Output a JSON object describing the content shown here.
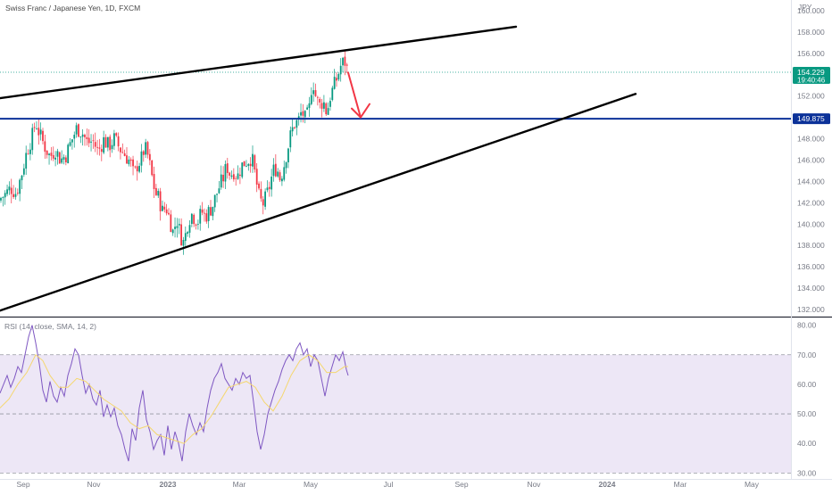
{
  "chart_data": {
    "type": "candlestick",
    "title": "Swiss Franc / Japanese Yen, 1D, FXCM",
    "currency_label": "JPY",
    "price_axis": {
      "ylim": [
        131.5,
        161.0
      ],
      "ticks": [
        "160.000",
        "158.000",
        "156.000",
        "154.000",
        "152.000",
        "150.000",
        "148.000",
        "146.000",
        "144.000",
        "142.000",
        "140.000",
        "138.000",
        "136.000",
        "134.000",
        "132.000"
      ]
    },
    "x_axis": {
      "labels": [
        {
          "text": "Sep",
          "x": 26
        },
        {
          "text": "Nov",
          "x": 105
        },
        {
          "text": "2023",
          "x": 188,
          "bold": true
        },
        {
          "text": "Mar",
          "x": 268
        },
        {
          "text": "May",
          "x": 348
        },
        {
          "text": "Jul",
          "x": 435
        },
        {
          "text": "Sep",
          "x": 517
        },
        {
          "text": "Nov",
          "x": 598
        },
        {
          "text": "2024",
          "x": 680,
          "bold": true
        },
        {
          "text": "Mar",
          "x": 762
        },
        {
          "text": "May",
          "x": 842
        }
      ]
    },
    "last_price": {
      "value": "154.229",
      "countdown": "19:40:46",
      "price": 154.229
    },
    "horizontal_level": {
      "value": "149.875",
      "price": 149.875
    },
    "close_path": [
      [
        0,
        142.4
      ],
      [
        6,
        142.8
      ],
      [
        12,
        143.4
      ],
      [
        18,
        142.9
      ],
      [
        24,
        144.6
      ],
      [
        30,
        146.8
      ],
      [
        36,
        148.2
      ],
      [
        40,
        149.6
      ],
      [
        44,
        148.5
      ],
      [
        50,
        147.3
      ],
      [
        56,
        146.3
      ],
      [
        62,
        147.0
      ],
      [
        68,
        146.0
      ],
      [
        74,
        146.5
      ],
      [
        80,
        147.8
      ],
      [
        86,
        149.0
      ],
      [
        92,
        148.6
      ],
      [
        98,
        147.6
      ],
      [
        104,
        147.8
      ],
      [
        110,
        146.8
      ],
      [
        116,
        147.9
      ],
      [
        122,
        147.3
      ],
      [
        128,
        148.0
      ],
      [
        134,
        147.1
      ],
      [
        140,
        146.5
      ],
      [
        146,
        145.8
      ],
      [
        150,
        144.5
      ],
      [
        154,
        145.6
      ],
      [
        158,
        146.0
      ],
      [
        162,
        147.2
      ],
      [
        166,
        146.3
      ],
      [
        170,
        144.5
      ],
      [
        174,
        142.9
      ],
      [
        178,
        142.4
      ],
      [
        182,
        141.2
      ],
      [
        186,
        141.6
      ],
      [
        190,
        140.5
      ],
      [
        194,
        139.2
      ],
      [
        198,
        140.5
      ],
      [
        202,
        139.0
      ],
      [
        206,
        138.2
      ],
      [
        210,
        140.0
      ],
      [
        214,
        141.0
      ],
      [
        218,
        140.6
      ],
      [
        222,
        140.3
      ],
      [
        226,
        141.2
      ],
      [
        230,
        140.7
      ],
      [
        234,
        141.2
      ],
      [
        238,
        141.7
      ],
      [
        242,
        142.7
      ],
      [
        246,
        143.6
      ],
      [
        250,
        144.3
      ],
      [
        254,
        145.5
      ],
      [
        258,
        144.6
      ],
      [
        262,
        145.0
      ],
      [
        266,
        144.4
      ],
      [
        270,
        145.4
      ],
      [
        274,
        145.8
      ],
      [
        278,
        146.0
      ],
      [
        282,
        146.3
      ],
      [
        286,
        144.5
      ],
      [
        290,
        142.6
      ],
      [
        294,
        141.8
      ],
      [
        298,
        142.5
      ],
      [
        302,
        143.6
      ],
      [
        306,
        145.0
      ],
      [
        310,
        145.3
      ],
      [
        314,
        144.2
      ],
      [
        318,
        145.5
      ],
      [
        322,
        147.0
      ],
      [
        326,
        148.5
      ],
      [
        330,
        149.4
      ],
      [
        334,
        149.6
      ],
      [
        338,
        150.6
      ],
      [
        342,
        149.8
      ],
      [
        346,
        150.5
      ],
      [
        350,
        153.7
      ],
      [
        354,
        151.8
      ],
      [
        358,
        151.1
      ],
      [
        362,
        151.6
      ],
      [
        366,
        150.4
      ],
      [
        370,
        152.0
      ],
      [
        374,
        152.9
      ],
      [
        378,
        153.8
      ],
      [
        382,
        154.9
      ],
      [
        386,
        155.3
      ],
      [
        390,
        154.23
      ]
    ],
    "trendlines": [
      {
        "name": "upper",
        "p1": [
          0,
          151.8
        ],
        "p2": [
          578,
          158.5
        ]
      },
      {
        "name": "lower",
        "p1": [
          0,
          131.9
        ],
        "p2": [
          712,
          152.2
        ]
      }
    ],
    "annotation": {
      "type": "arrow",
      "color": "#f23645",
      "p1": [
        390,
        154.2
      ],
      "p2": [
        404,
        150.0
      ]
    },
    "rsi": {
      "label": "RSI (14, close, SMA, 14, 2)",
      "ylim": [
        28,
        82
      ],
      "ticks": [
        "80.00",
        "70.00",
        "60.00",
        "50.00",
        "40.00",
        "30.00"
      ],
      "band": [
        30,
        70
      ],
      "midline": 50,
      "rsi_path": [
        [
          0,
          57
        ],
        [
          4,
          60
        ],
        [
          8,
          63
        ],
        [
          12,
          59
        ],
        [
          16,
          62
        ],
        [
          20,
          66
        ],
        [
          24,
          64
        ],
        [
          28,
          70
        ],
        [
          32,
          76
        ],
        [
          36,
          80
        ],
        [
          40,
          74
        ],
        [
          44,
          67
        ],
        [
          48,
          58
        ],
        [
          52,
          54
        ],
        [
          56,
          61
        ],
        [
          60,
          56
        ],
        [
          64,
          54
        ],
        [
          68,
          59
        ],
        [
          72,
          56
        ],
        [
          76,
          63
        ],
        [
          80,
          67
        ],
        [
          84,
          72
        ],
        [
          88,
          70
        ],
        [
          92,
          63
        ],
        [
          96,
          57
        ],
        [
          100,
          60
        ],
        [
          104,
          55
        ],
        [
          108,
          53
        ],
        [
          112,
          58
        ],
        [
          116,
          49
        ],
        [
          120,
          53
        ],
        [
          124,
          49
        ],
        [
          128,
          52
        ],
        [
          132,
          46
        ],
        [
          136,
          43
        ],
        [
          140,
          38
        ],
        [
          144,
          34
        ],
        [
          148,
          45
        ],
        [
          152,
          41
        ],
        [
          156,
          52
        ],
        [
          160,
          58
        ],
        [
          164,
          48
        ],
        [
          168,
          44
        ],
        [
          172,
          38
        ],
        [
          176,
          41
        ],
        [
          180,
          43
        ],
        [
          184,
          36
        ],
        [
          188,
          46
        ],
        [
          192,
          38
        ],
        [
          196,
          44
        ],
        [
          200,
          40
        ],
        [
          204,
          34
        ],
        [
          208,
          44
        ],
        [
          212,
          50
        ],
        [
          216,
          46
        ],
        [
          220,
          43
        ],
        [
          224,
          47
        ],
        [
          228,
          44
        ],
        [
          232,
          52
        ],
        [
          236,
          58
        ],
        [
          240,
          62
        ],
        [
          244,
          64
        ],
        [
          248,
          67
        ],
        [
          252,
          62
        ],
        [
          256,
          60
        ],
        [
          260,
          58
        ],
        [
          264,
          62
        ],
        [
          268,
          60
        ],
        [
          272,
          64
        ],
        [
          276,
          62
        ],
        [
          280,
          63
        ],
        [
          284,
          54
        ],
        [
          288,
          44
        ],
        [
          292,
          38
        ],
        [
          296,
          43
        ],
        [
          300,
          50
        ],
        [
          304,
          54
        ],
        [
          308,
          58
        ],
        [
          312,
          61
        ],
        [
          316,
          65
        ],
        [
          320,
          68
        ],
        [
          324,
          70
        ],
        [
          328,
          68
        ],
        [
          332,
          72
        ],
        [
          336,
          74
        ],
        [
          340,
          70
        ],
        [
          344,
          72
        ],
        [
          348,
          66
        ],
        [
          352,
          70
        ],
        [
          356,
          68
        ],
        [
          360,
          62
        ],
        [
          364,
          56
        ],
        [
          368,
          62
        ],
        [
          372,
          66
        ],
        [
          376,
          70
        ],
        [
          380,
          68
        ],
        [
          384,
          71
        ],
        [
          388,
          65
        ],
        [
          390,
          63
        ]
      ],
      "sma_path": [
        [
          0,
          52
        ],
        [
          10,
          55
        ],
        [
          20,
          60
        ],
        [
          30,
          64
        ],
        [
          40,
          70
        ],
        [
          48,
          68
        ],
        [
          56,
          63
        ],
        [
          66,
          59
        ],
        [
          76,
          59
        ],
        [
          86,
          62
        ],
        [
          96,
          61
        ],
        [
          106,
          58
        ],
        [
          116,
          55
        ],
        [
          126,
          53
        ],
        [
          136,
          51
        ],
        [
          146,
          47
        ],
        [
          156,
          45
        ],
        [
          166,
          46
        ],
        [
          176,
          43
        ],
        [
          186,
          42
        ],
        [
          196,
          41
        ],
        [
          206,
          40
        ],
        [
          216,
          43
        ],
        [
          226,
          45
        ],
        [
          236,
          49
        ],
        [
          246,
          54
        ],
        [
          256,
          59
        ],
        [
          266,
          60
        ],
        [
          276,
          61
        ],
        [
          286,
          59
        ],
        [
          296,
          54
        ],
        [
          306,
          51
        ],
        [
          316,
          56
        ],
        [
          326,
          63
        ],
        [
          336,
          68
        ],
        [
          346,
          70
        ],
        [
          356,
          68
        ],
        [
          366,
          64
        ],
        [
          376,
          64
        ],
        [
          386,
          66
        ],
        [
          390,
          66
        ]
      ]
    },
    "colors": {
      "up": "#089981",
      "down": "#f23645",
      "trendline": "#000000",
      "level": "#0c3299",
      "last_price_line": "#089981",
      "rsi_line": "#7e57c2",
      "rsi_sma": "#f5d76e",
      "rsi_band": "#ede7f6"
    }
  }
}
